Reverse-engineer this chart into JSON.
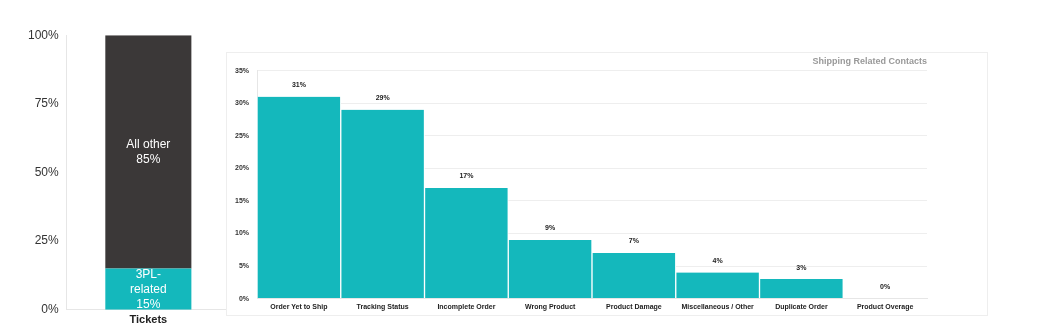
{
  "chart_data": [
    {
      "type": "bar",
      "stacked": true,
      "categories": [
        "Tickets"
      ],
      "series": [
        {
          "name": "3PL-related",
          "color": "#14b8bc",
          "values": [
            15
          ],
          "value_labels": [
            "15%"
          ]
        },
        {
          "name": "All other",
          "color": "#3b3838",
          "values": [
            85
          ],
          "value_labels": [
            "85%"
          ]
        }
      ],
      "ylim": [
        0,
        100
      ],
      "yticks": [
        {
          "value": 0,
          "label": "0%"
        },
        {
          "value": 25,
          "label": "25%"
        },
        {
          "value": 50,
          "label": "50%"
        },
        {
          "value": 75,
          "label": "75%"
        },
        {
          "value": 100,
          "label": "100%"
        }
      ],
      "grid": false,
      "legend": false
    },
    {
      "type": "bar",
      "title": "Shipping Related Contacts",
      "categories": [
        "Order Yet to Ship",
        "Tracking Status",
        "Incomplete Order",
        "Wrong Product",
        "Product Damage",
        "Miscellaneous / Other",
        "Duplicate Order",
        "Product Overage"
      ],
      "values": [
        31,
        29,
        17,
        9,
        7,
        4,
        3,
        0
      ],
      "color": "#14b8bc",
      "value_labels": [
        "31%",
        "29%",
        "17%",
        "9%",
        "7%",
        "4%",
        "3%",
        "0%"
      ],
      "ylim": [
        0,
        35
      ],
      "yticks": [
        {
          "value": 0,
          "label": "0%"
        },
        {
          "value": 5,
          "label": "5%"
        },
        {
          "value": 10,
          "label": "10%"
        },
        {
          "value": 15,
          "label": "15%"
        },
        {
          "value": 20,
          "label": "20%"
        },
        {
          "value": 25,
          "label": "25%"
        },
        {
          "value": 30,
          "label": "30%"
        },
        {
          "value": 35,
          "label": "35%"
        }
      ],
      "grid": "y",
      "legend": false
    }
  ]
}
